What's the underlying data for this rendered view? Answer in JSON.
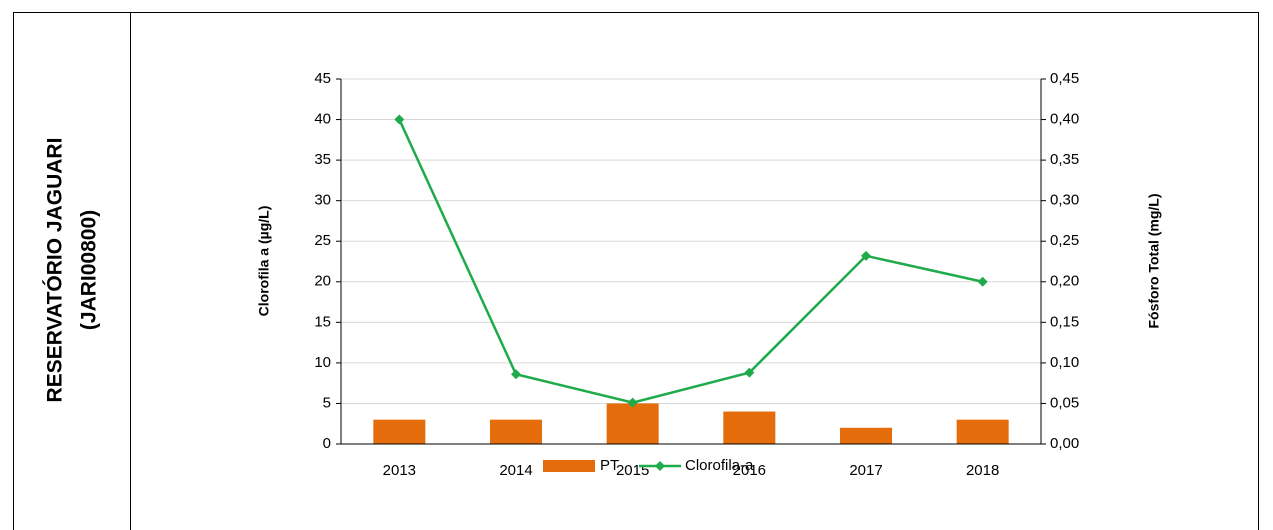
{
  "chart_data": {
    "type": "bar_line",
    "row_label": [
      "RESERVATÓRIO JAGUARI",
      "(JARI00800)"
    ],
    "ylabel": "Clorofila a (µg/L)",
    "y2label": "Fósforo Total (mg/L)",
    "categories": [
      "2013",
      "2014",
      "2015",
      "2016",
      "2017",
      "2018"
    ],
    "series": [
      {
        "name": "PT",
        "type": "bar",
        "axis": "y2",
        "color": "#e46c0a",
        "values": [
          0.03,
          0.03,
          0.05,
          0.04,
          0.02,
          0.03
        ]
      },
      {
        "name": "Clorofila-a",
        "type": "line",
        "axis": "y",
        "color": "#1faa4b",
        "values": [
          40,
          8.6,
          5.1,
          8.8,
          23.2,
          20
        ]
      }
    ],
    "ylim": [
      0,
      45
    ],
    "yticks": [
      0,
      5,
      10,
      15,
      20,
      25,
      30,
      35,
      40,
      45
    ],
    "y2lim": [
      0,
      0.45
    ],
    "y2ticks": [
      {
        "value": 0,
        "label": "0,00"
      },
      {
        "value": 0.05,
        "label": "0,05"
      },
      {
        "value": 0.1,
        "label": "0,10"
      },
      {
        "value": 0.15,
        "label": "0,15"
      },
      {
        "value": 0.2,
        "label": "0,20"
      },
      {
        "value": 0.25,
        "label": "0,25"
      },
      {
        "value": 0.3,
        "label": "0,30"
      },
      {
        "value": 0.35,
        "label": "0,35"
      },
      {
        "value": 0.4,
        "label": "0,40"
      },
      {
        "value": 0.45,
        "label": "0,45"
      }
    ],
    "grid": true,
    "legend": "bottom"
  }
}
